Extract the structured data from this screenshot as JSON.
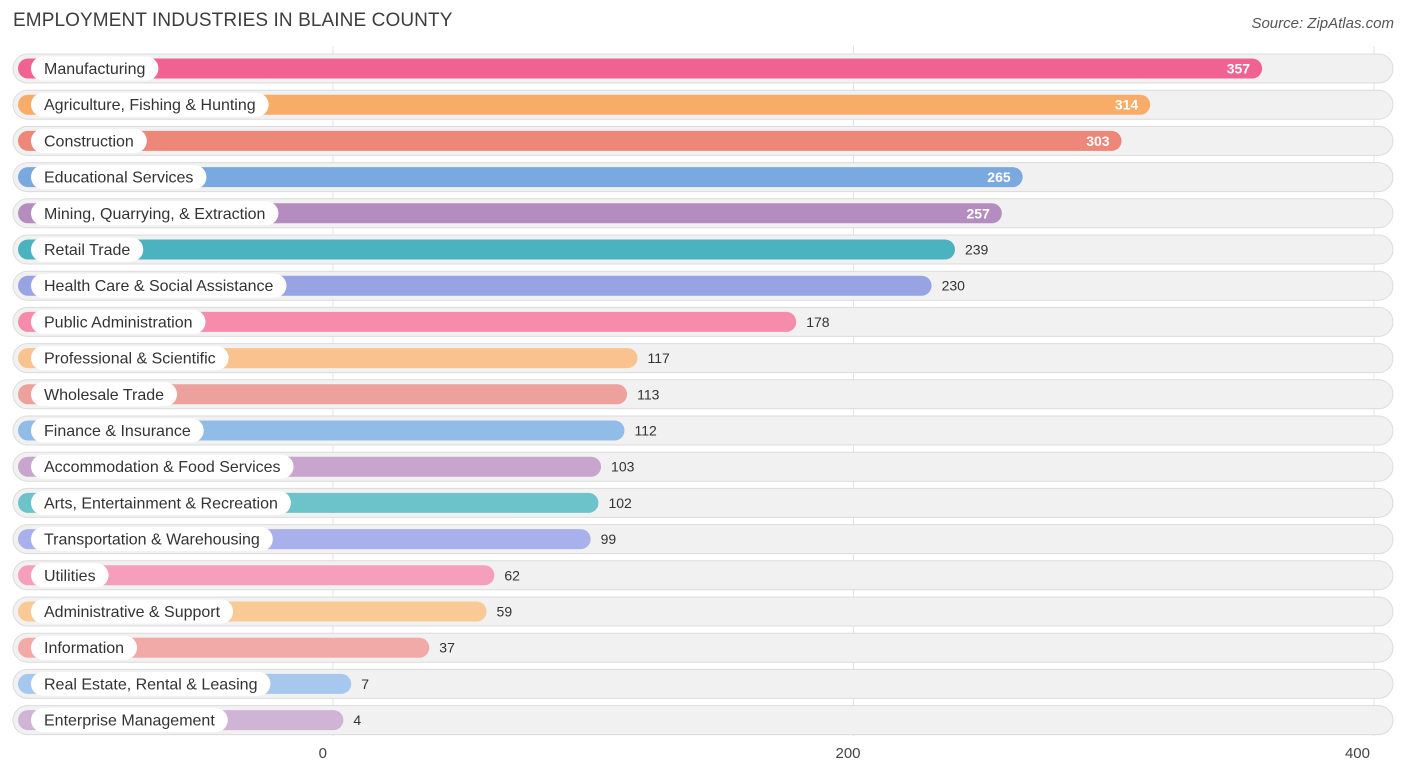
{
  "header": {
    "title": "EMPLOYMENT INDUSTRIES IN BLAINE COUNTY",
    "source": "Source: ZipAtlas.com"
  },
  "chart_data": {
    "type": "bar",
    "orientation": "horizontal",
    "title": "EMPLOYMENT INDUSTRIES IN BLAINE COUNTY",
    "xlim": [
      0,
      400
    ],
    "xticks": [
      0,
      200,
      400
    ],
    "grid": true,
    "categories": [
      "Manufacturing",
      "Agriculture, Fishing & Hunting",
      "Construction",
      "Educational Services",
      "Mining, Quarrying, & Extraction",
      "Retail Trade",
      "Health Care & Social Assistance",
      "Public Administration",
      "Professional & Scientific",
      "Wholesale Trade",
      "Finance & Insurance",
      "Accommodation & Food Services",
      "Arts, Entertainment & Recreation",
      "Transportation & Warehousing",
      "Utilities",
      "Administrative & Support",
      "Information",
      "Real Estate, Rental & Leasing",
      "Enterprise Management"
    ],
    "values": [
      357,
      314,
      303,
      265,
      257,
      239,
      230,
      178,
      117,
      113,
      112,
      103,
      102,
      99,
      62,
      59,
      37,
      7,
      4
    ],
    "colors": [
      "#f06292",
      "#f7ad68",
      "#ec877a",
      "#79a9de",
      "#b48cc0",
      "#4bb3bf",
      "#98a3e4",
      "#f78bab",
      "#f9c28e",
      "#eca19d",
      "#92bce8",
      "#c7a5cc",
      "#6cc3c9",
      "#a9b1ec",
      "#f59fbd",
      "#f9c996",
      "#f1aaa8",
      "#a7c8ee",
      "#cfb4d6"
    ]
  }
}
